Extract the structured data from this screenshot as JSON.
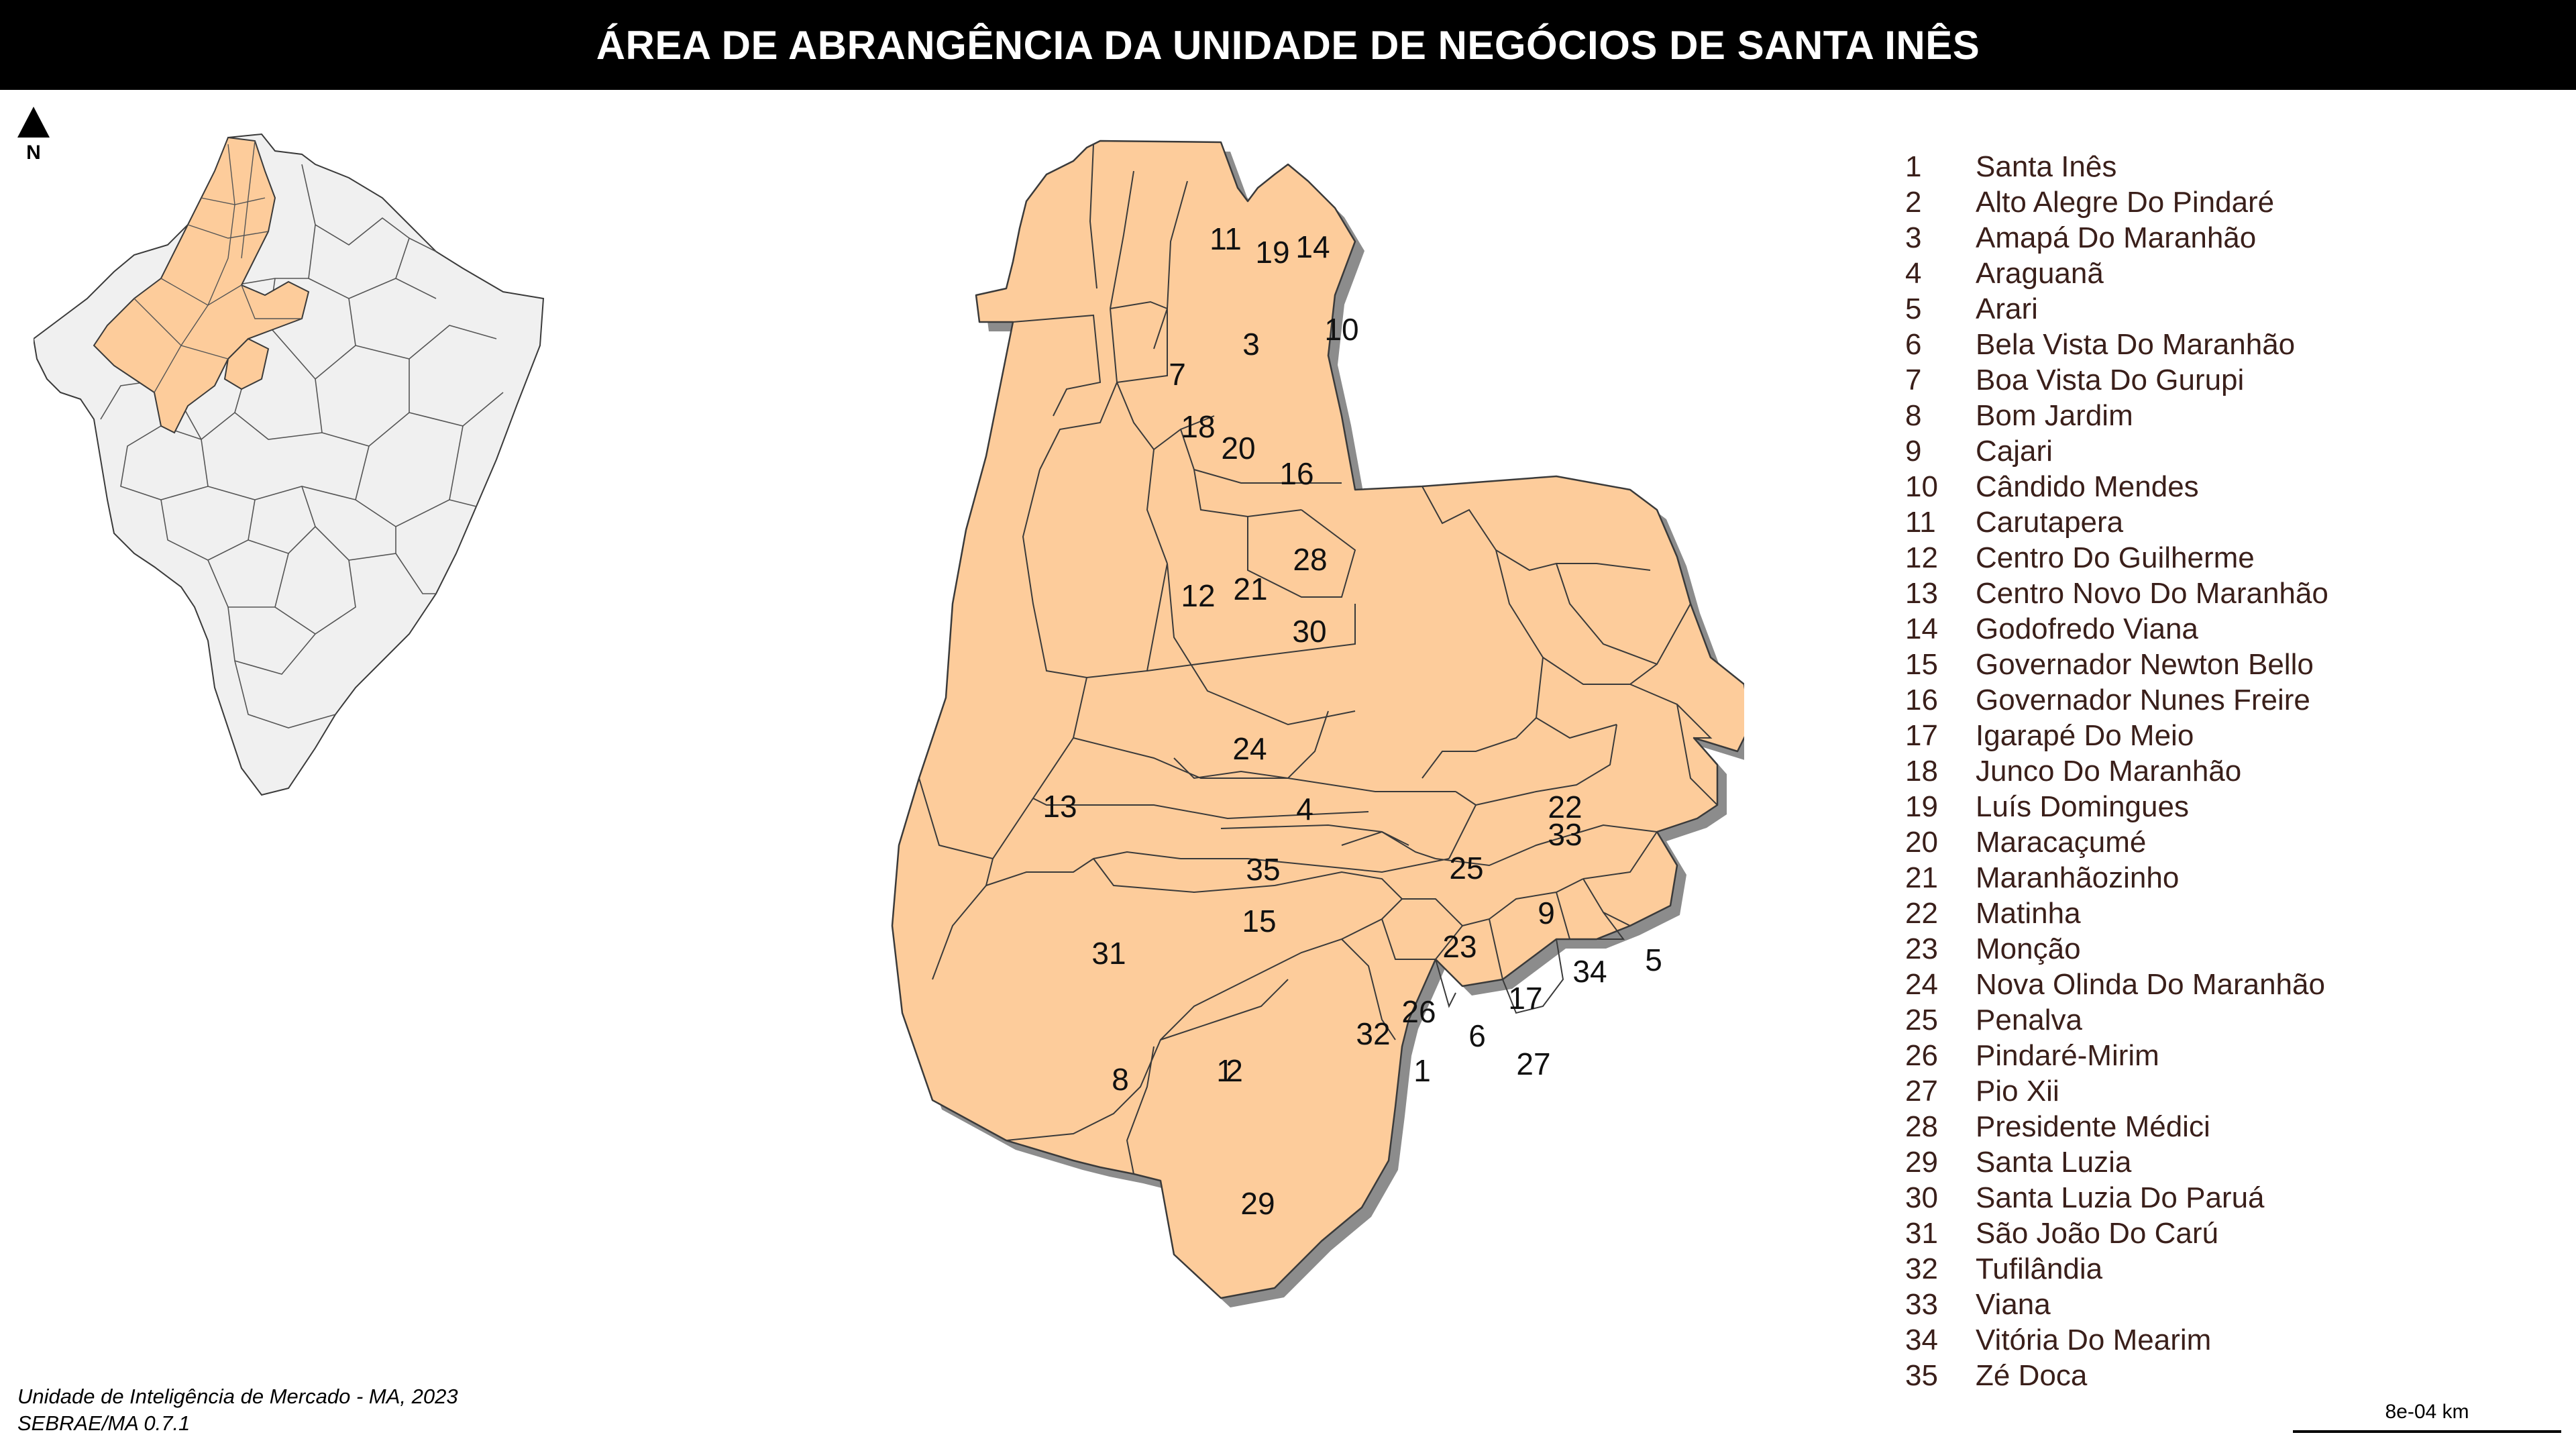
{
  "title": "ÁREA DE ABRANGÊNCIA DA UNIDADE DE NEGÓCIOS DE SANTA INÊS",
  "north_label": "N",
  "colors": {
    "region_fill": "#fdcc9b",
    "region_shadow": "#8c8c8c",
    "outline": "#3a3a3a",
    "inset_fill": "#f0f0f0",
    "title_bg": "#000000"
  },
  "legend": [
    {
      "num": "1",
      "name": "Santa Inês"
    },
    {
      "num": "2",
      "name": "Alto Alegre Do Pindaré"
    },
    {
      "num": "3",
      "name": "Amapá Do Maranhão"
    },
    {
      "num": "4",
      "name": "Araguanã"
    },
    {
      "num": "5",
      "name": "Arari"
    },
    {
      "num": "6",
      "name": "Bela Vista Do Maranhão"
    },
    {
      "num": "7",
      "name": "Boa Vista Do Gurupi"
    },
    {
      "num": "8",
      "name": "Bom Jardim"
    },
    {
      "num": "9",
      "name": "Cajari"
    },
    {
      "num": "10",
      "name": "Cândido Mendes"
    },
    {
      "num": "11",
      "name": "Carutapera"
    },
    {
      "num": "12",
      "name": "Centro Do Guilherme"
    },
    {
      "num": "13",
      "name": "Centro Novo Do Maranhão"
    },
    {
      "num": "14",
      "name": "Godofredo Viana"
    },
    {
      "num": "15",
      "name": "Governador Newton Bello"
    },
    {
      "num": "16",
      "name": "Governador Nunes Freire"
    },
    {
      "num": "17",
      "name": "Igarapé Do Meio"
    },
    {
      "num": "18",
      "name": "Junco Do Maranhão"
    },
    {
      "num": "19",
      "name": "Luís Domingues"
    },
    {
      "num": "20",
      "name": "Maracaçumé"
    },
    {
      "num": "21",
      "name": "Maranhãozinho"
    },
    {
      "num": "22",
      "name": "Matinha"
    },
    {
      "num": "23",
      "name": "Monção"
    },
    {
      "num": "24",
      "name": "Nova Olinda Do Maranhão"
    },
    {
      "num": "25",
      "name": "Penalva"
    },
    {
      "num": "26",
      "name": "Pindaré-Mirim"
    },
    {
      "num": "27",
      "name": "Pio Xii"
    },
    {
      "num": "28",
      "name": "Presidente Médici"
    },
    {
      "num": "29",
      "name": "Santa Luzia"
    },
    {
      "num": "30",
      "name": "Santa Luzia Do Paruá"
    },
    {
      "num": "31",
      "name": "São João Do Carú"
    },
    {
      "num": "32",
      "name": "Tufilândia"
    },
    {
      "num": "33",
      "name": "Viana"
    },
    {
      "num": "34",
      "name": "Vitória Do Mearim"
    },
    {
      "num": "35",
      "name": "Zé Doca"
    }
  ],
  "credits": {
    "line1": "Unidade de Inteligência de Mercado - MA, 2023",
    "line2": "SEBRAE/MA 0.7.1"
  },
  "scale_bar": {
    "label": "8e-04 km"
  }
}
